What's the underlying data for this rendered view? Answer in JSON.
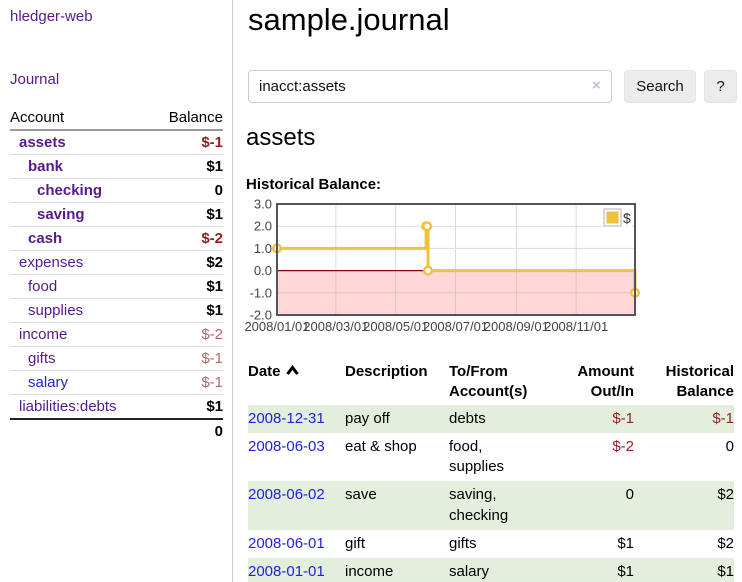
{
  "app": {
    "title": "hledger-web"
  },
  "sidebar": {
    "nav": {
      "journal_label": "Journal"
    },
    "accounts_table": {
      "headers": {
        "account": "Account",
        "balance": "Balance"
      },
      "rows": [
        {
          "name": "assets",
          "indent": 0,
          "bold": true,
          "link_color": "purple",
          "balance": "$-1",
          "balance_style": "neg-strong"
        },
        {
          "name": "bank",
          "indent": 1,
          "bold": true,
          "link_color": "purple",
          "balance": "$1",
          "balance_style": "num"
        },
        {
          "name": "checking",
          "indent": 2,
          "bold": true,
          "link_color": "purple",
          "balance": "0",
          "balance_style": "num"
        },
        {
          "name": "saving",
          "indent": 2,
          "bold": true,
          "link_color": "purple",
          "balance": "$1",
          "balance_style": "num"
        },
        {
          "name": "cash",
          "indent": 1,
          "bold": true,
          "link_color": "purple",
          "balance": "$-2",
          "balance_style": "neg-strong"
        },
        {
          "name": "expenses",
          "indent": 0,
          "bold": false,
          "link_color": "purple",
          "balance": "$2",
          "balance_style": "num"
        },
        {
          "name": "food",
          "indent": 1,
          "bold": false,
          "link_color": "purple",
          "balance": "$1",
          "balance_style": "num"
        },
        {
          "name": "supplies",
          "indent": 1,
          "bold": false,
          "link_color": "purple",
          "balance": "$1",
          "balance_style": "num"
        },
        {
          "name": "income",
          "indent": 0,
          "bold": false,
          "link_color": "purple",
          "balance": "$-2",
          "balance_style": "neg-soft"
        },
        {
          "name": "gifts",
          "indent": 1,
          "bold": false,
          "link_color": "purple",
          "balance": "$-1",
          "balance_style": "neg-soft"
        },
        {
          "name": "salary",
          "indent": 1,
          "bold": false,
          "link_color": "blue",
          "balance": "$-1",
          "balance_style": "neg-soft"
        },
        {
          "name": "liabilities:debts",
          "indent": 0,
          "bold": false,
          "link_color": "purple",
          "balance": "$1",
          "balance_style": "num"
        }
      ],
      "total": "0"
    }
  },
  "main": {
    "title": "sample.journal",
    "search": {
      "value": "inacct:assets",
      "clear_icon": "×",
      "button_label": "Search",
      "help_label": "?"
    },
    "account_heading": "assets",
    "chart_heading": "Historical Balance:"
  },
  "chart_data": {
    "type": "line",
    "mode": "steps",
    "title": "Historical Balance:",
    "legend": {
      "label": "$",
      "position": "top-right"
    },
    "series": [
      {
        "name": "$",
        "color": "#edc240",
        "points": [
          {
            "date": "2008-01-01",
            "value": 1
          },
          {
            "date": "2008-06-01",
            "value": 2
          },
          {
            "date": "2008-06-02",
            "value": 2
          },
          {
            "date": "2008-06-03",
            "value": 0
          },
          {
            "date": "2008-12-31",
            "value": -1
          }
        ]
      }
    ],
    "xlim": [
      "2008-01-01",
      "2008-12-31"
    ],
    "ylim": [
      -2,
      3
    ],
    "x_ticks": [
      {
        "date": "2008-01-01",
        "label": "2008/01/01"
      },
      {
        "date": "2008-03-01",
        "label": "2008/03/01"
      },
      {
        "date": "2008-05-01",
        "label": "2008/05/01"
      },
      {
        "date": "2008-07-01",
        "label": "2008/07/01"
      },
      {
        "date": "2008-09-01",
        "label": "2008/09/01"
      },
      {
        "date": "2008-11-01",
        "label": "2008/11/01"
      }
    ],
    "y_ticks": [
      {
        "value": 3,
        "label": "3.0"
      },
      {
        "value": 2,
        "label": "2.0"
      },
      {
        "value": 1,
        "label": "1.0"
      },
      {
        "value": 0,
        "label": "0.0"
      },
      {
        "value": -1,
        "label": "-1.0"
      },
      {
        "value": -2,
        "label": "-2.0"
      }
    ],
    "grid": true,
    "negative_region_fill": "#fbd9d9",
    "zero_line_color": "#8b0000",
    "border_color": "#545454",
    "gridline_color": "#dcdcdc"
  },
  "transactions": {
    "headers": [
      {
        "label": "Date",
        "sort": "asc",
        "align": "left"
      },
      {
        "label": "Description",
        "align": "left"
      },
      {
        "label": "To/From Account(s)",
        "align": "left"
      },
      {
        "label": "Amount Out/In",
        "align": "right"
      },
      {
        "label": "Historical Balance",
        "align": "right"
      }
    ],
    "rows": [
      {
        "date": "2008-12-31",
        "description": "pay off",
        "accounts": "debts",
        "amount": "$-1",
        "amount_neg": true,
        "balance": "$-1",
        "balance_neg": true,
        "highlight": true
      },
      {
        "date": "2008-06-03",
        "description": "eat & shop",
        "accounts": "food, supplies",
        "amount": "$-2",
        "amount_neg": true,
        "balance": "0",
        "balance_neg": false,
        "highlight": false
      },
      {
        "date": "2008-06-02",
        "description": "save",
        "accounts": "saving, checking",
        "amount": "0",
        "amount_neg": false,
        "balance": "$2",
        "balance_neg": false,
        "highlight": true
      },
      {
        "date": "2008-06-01",
        "description": "gift",
        "accounts": "gifts",
        "amount": "$1",
        "amount_neg": false,
        "balance": "$2",
        "balance_neg": false,
        "highlight": false
      },
      {
        "date": "2008-01-01",
        "description": "income",
        "accounts": "salary",
        "amount": "$1",
        "amount_neg": false,
        "balance": "$1",
        "balance_neg": false,
        "highlight": true
      }
    ]
  },
  "colors": {
    "link_purple": "#551a8b",
    "link_blue": "#2222dd",
    "negative_strong": "#941f1f",
    "negative_soft": "#b36a6a",
    "row_highlight_green": "#e3eedd",
    "series_gold": "#edc240"
  }
}
